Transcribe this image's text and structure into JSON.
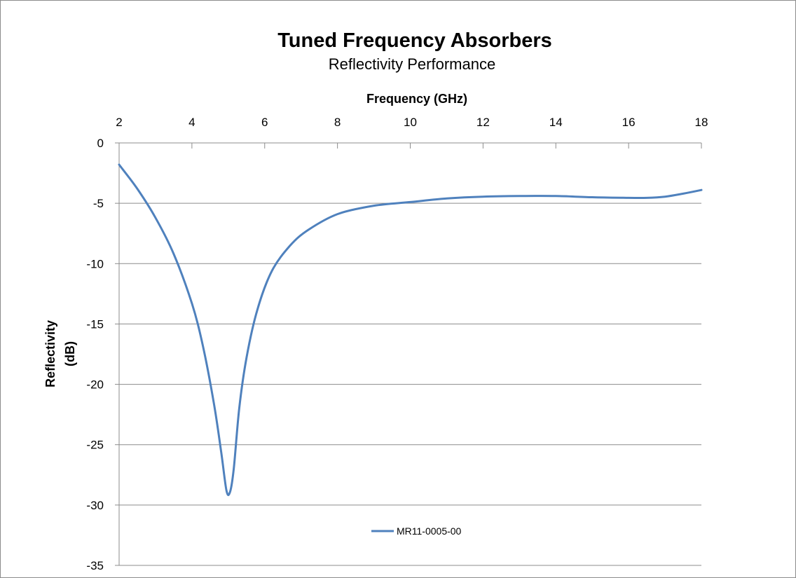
{
  "chart_data": {
    "type": "line",
    "title": "Tuned Frequency Absorbers",
    "subtitle": "Reflectivity Performance",
    "xlabel": "Frequency (GHz)",
    "ylabel_lines": [
      "Reflectivity",
      "(dB)"
    ],
    "xlim": [
      2,
      18
    ],
    "ylim": [
      -35,
      0
    ],
    "x_ticks": [
      "2",
      "4",
      "6",
      "8",
      "10",
      "12",
      "14",
      "16",
      "18"
    ],
    "y_ticks": [
      "0",
      "-5",
      "-10",
      "-15",
      "-20",
      "-25",
      "-30",
      "-35"
    ],
    "x_axis_position": "top",
    "grid": "horizontal",
    "legend_position": "bottom-center",
    "series": [
      {
        "name": "MR11-0005-00",
        "color": "#4f81bd",
        "x": [
          2,
          2.5,
          3,
          3.5,
          4,
          4.3,
          4.6,
          4.8,
          4.95,
          5.05,
          5.15,
          5.3,
          5.5,
          5.8,
          6.2,
          6.7,
          7.2,
          8,
          9,
          10,
          11,
          12,
          13,
          14,
          15,
          16,
          16.5,
          17,
          17.5,
          18
        ],
        "y": [
          -1.8,
          -3.8,
          -6.2,
          -9.2,
          -13.3,
          -16.8,
          -21.5,
          -25.5,
          -28.8,
          -28.9,
          -27.0,
          -22.0,
          -17.8,
          -13.8,
          -10.6,
          -8.5,
          -7.2,
          -5.9,
          -5.2,
          -4.9,
          -4.6,
          -4.45,
          -4.4,
          -4.4,
          -4.5,
          -4.55,
          -4.55,
          -4.45,
          -4.2,
          -3.9
        ]
      }
    ]
  }
}
